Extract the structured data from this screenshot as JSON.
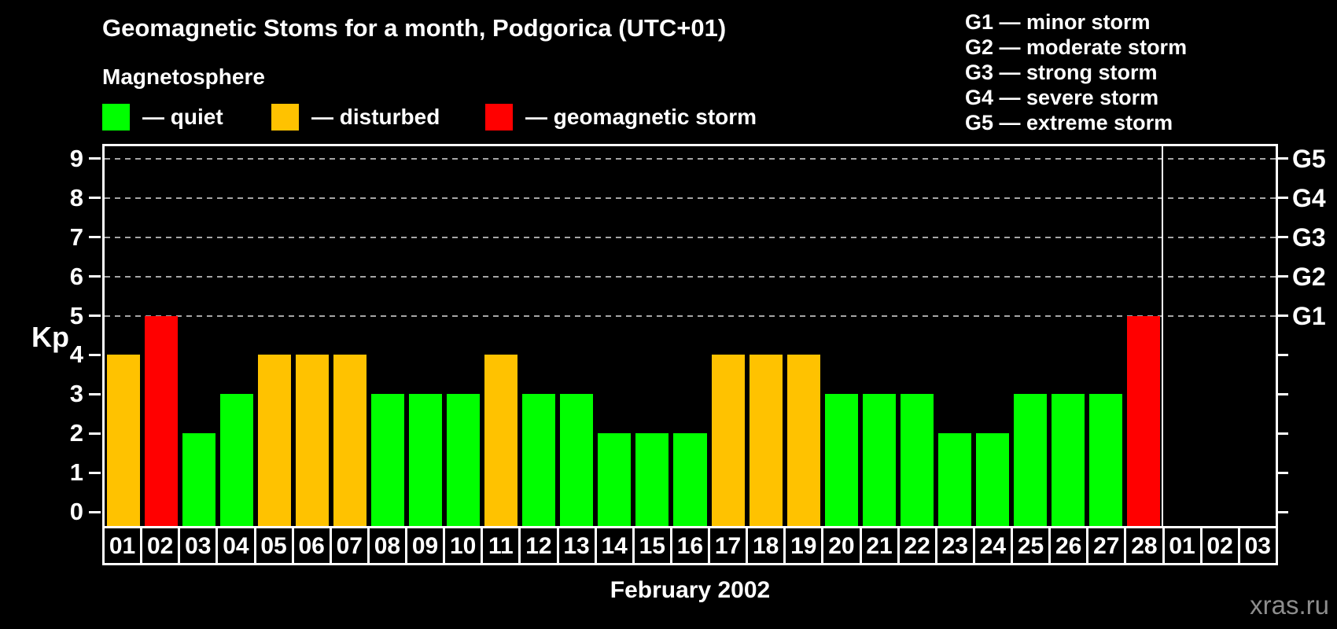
{
  "title": "Geomagnetic Stoms for a month, Podgorica (UTC+01)",
  "legend": {
    "heading": "Magnetosphere",
    "items": [
      {
        "key": "quiet",
        "label": "— quiet",
        "color": "#00ff00"
      },
      {
        "key": "disturbed",
        "label": "— disturbed",
        "color": "#ffc200"
      },
      {
        "key": "storm",
        "label": "— geomagnetic storm",
        "color": "#ff0000"
      }
    ]
  },
  "g_scale_legend": [
    "G1 — minor storm",
    "G2 — moderate storm",
    "G3 — strong storm",
    "G4 — severe storm",
    "G5 — extreme storm"
  ],
  "chart_data": {
    "type": "bar",
    "title": "Geomagnetic Stoms for a month, Podgorica (UTC+01)",
    "xlabel": "February 2002",
    "ylabel": "Kp",
    "ylim": [
      0,
      9
    ],
    "yticks": [
      0,
      1,
      2,
      3,
      4,
      5,
      6,
      7,
      8,
      9
    ],
    "gridlines_at_kp": [
      5,
      6,
      7,
      8,
      9
    ],
    "grid_style": "dashed horizontal, Kp 5 through 9 only",
    "right_axis_labels": [
      {
        "label": "G1",
        "kp": 5
      },
      {
        "label": "G2",
        "kp": 6
      },
      {
        "label": "G3",
        "kp": 7
      },
      {
        "label": "G4",
        "kp": 8
      },
      {
        "label": "G5",
        "kp": 9
      }
    ],
    "categories": [
      "01",
      "02",
      "03",
      "04",
      "05",
      "06",
      "07",
      "08",
      "09",
      "10",
      "11",
      "12",
      "13",
      "14",
      "15",
      "16",
      "17",
      "18",
      "19",
      "20",
      "21",
      "22",
      "23",
      "24",
      "25",
      "26",
      "27",
      "28",
      "01",
      "02",
      "03"
    ],
    "series": [
      {
        "name": "Kp index",
        "values": [
          4,
          5,
          2,
          3,
          4,
          4,
          4,
          3,
          3,
          3,
          4,
          3,
          3,
          2,
          2,
          2,
          4,
          4,
          4,
          3,
          3,
          3,
          2,
          2,
          3,
          3,
          3,
          5,
          null,
          null,
          null
        ]
      }
    ],
    "statuses": [
      "disturbed",
      "storm",
      "quiet",
      "quiet",
      "disturbed",
      "disturbed",
      "disturbed",
      "quiet",
      "quiet",
      "quiet",
      "disturbed",
      "quiet",
      "quiet",
      "quiet",
      "quiet",
      "quiet",
      "disturbed",
      "disturbed",
      "disturbed",
      "quiet",
      "quiet",
      "quiet",
      "quiet",
      "quiet",
      "quiet",
      "quiet",
      "quiet",
      "storm",
      null,
      null,
      null
    ],
    "status_colors": {
      "quiet": "#00ff00",
      "disturbed": "#ffc200",
      "storm": "#ff0000"
    },
    "month_separator_after_category_index": 27,
    "legend_position": "top-left"
  },
  "footer": {
    "month_label": "February 2002",
    "watermark": "xras.ru"
  },
  "colors": {
    "background": "#000000",
    "text": "#ffffff",
    "gridline": "#a6a6a6",
    "axis": "#ffffff",
    "watermark_text": "#8d8d8d"
  }
}
